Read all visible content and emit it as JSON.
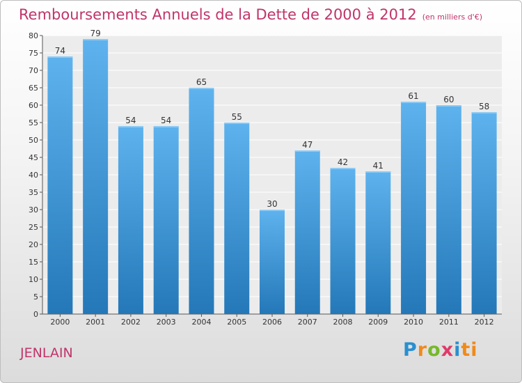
{
  "chart_data": {
    "type": "bar",
    "title": "Remboursements Annuels de la Dette de 2000 à 2012",
    "unit_note": "(en milliers d'€)",
    "categories": [
      "2000",
      "2001",
      "2002",
      "2003",
      "2004",
      "2005",
      "2006",
      "2007",
      "2008",
      "2009",
      "2010",
      "2011",
      "2012"
    ],
    "values": [
      74,
      79,
      54,
      54,
      65,
      55,
      30,
      47,
      42,
      41,
      61,
      60,
      58
    ],
    "ylim": [
      0,
      80
    ],
    "yticks": [
      0,
      5,
      10,
      15,
      20,
      25,
      30,
      35,
      40,
      45,
      50,
      55,
      60,
      65,
      70,
      75,
      80
    ],
    "grid": true,
    "bar_color": "#4aa3e6"
  },
  "footer": {
    "city": "JENLAIN",
    "logo": [
      "P",
      "r",
      "o",
      "x",
      "i",
      "ti"
    ]
  }
}
